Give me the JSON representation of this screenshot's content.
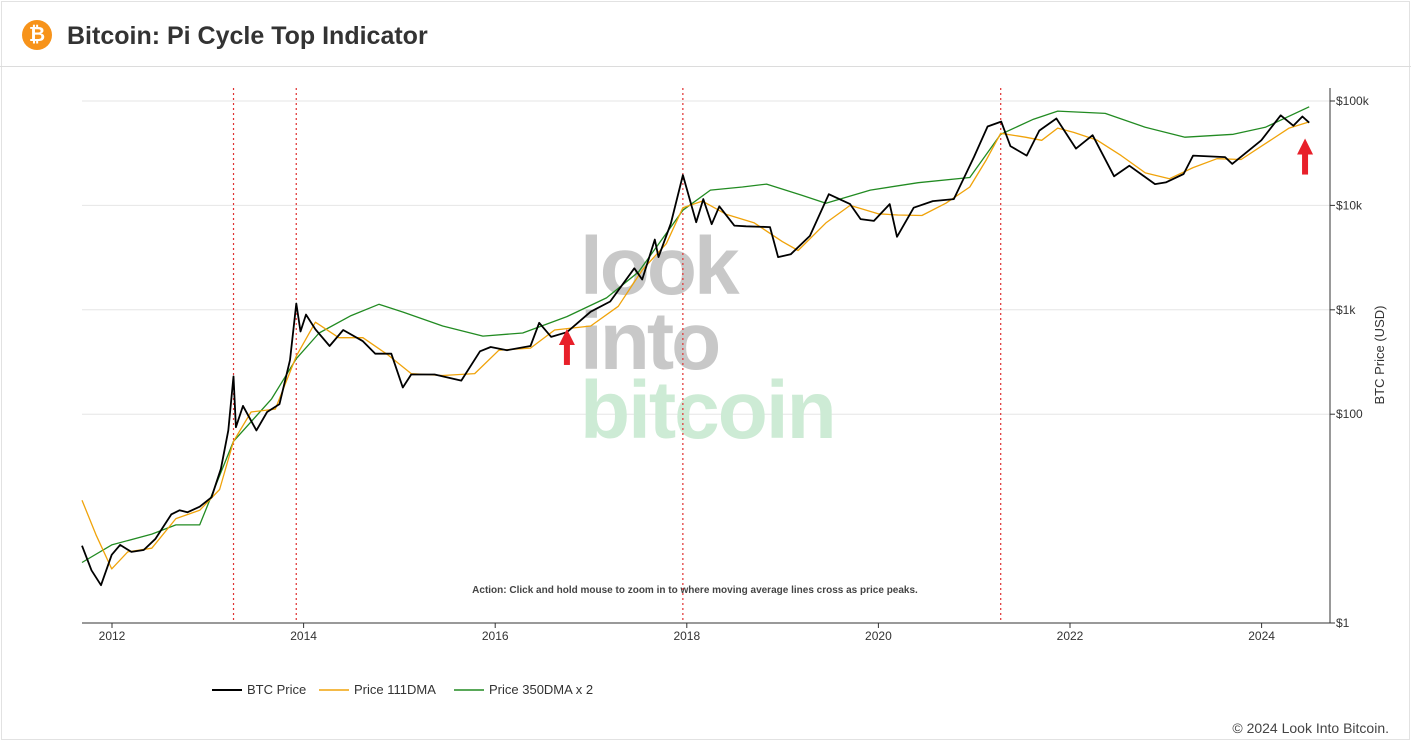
{
  "header": {
    "title": "Bitcoin: Pi Cycle Top Indicator",
    "logo_icon": "bitcoin-logo-icon",
    "logo_glyph": "₿"
  },
  "watermark": {
    "line1": "look",
    "line2": "into",
    "line3": "bitcoin"
  },
  "footer": {
    "copyright": "© 2024 Look Into Bitcoin."
  },
  "colors": {
    "btc_price": "#000000",
    "dma111": "#f0a30a",
    "dma350x2": "#228b22",
    "cross_line": "#e03030",
    "arrow": "#e8202a",
    "bitcoin_orange": "#f7931a"
  },
  "chart_data": {
    "type": "line",
    "title": "Bitcoin: Pi Cycle Top Indicator",
    "ylabel": "BTC Price (USD)",
    "xlabel": "",
    "y_scale": "log",
    "ylim": [
      1,
      100000
    ],
    "xlim": [
      "2011-09-01",
      "2024-12-31"
    ],
    "y_ticks": [
      {
        "value": 1,
        "label": "$1"
      },
      {
        "value": 100,
        "label": "$100"
      },
      {
        "value": 1000,
        "label": "$1k"
      },
      {
        "value": 10000,
        "label": "$10k"
      },
      {
        "value": 100000,
        "label": "$100k"
      }
    ],
    "x_ticks": [
      {
        "value": 2012,
        "label": "2012"
      },
      {
        "value": 2014,
        "label": "2014"
      },
      {
        "value": 2016,
        "label": "2016"
      },
      {
        "value": 2018,
        "label": "2018"
      },
      {
        "value": 2020,
        "label": "2020"
      },
      {
        "value": 2022,
        "label": "2022"
      },
      {
        "value": 2024,
        "label": "2024"
      }
    ],
    "grid": true,
    "legend_position": "bottom-left",
    "annotation": "Action: Click and hold mouse to zoom in to where moving average lines cross as price peaks.",
    "cross_events": [
      "2013-04-09",
      "2013-12-04",
      "2017-12-17",
      "2021-04-12"
    ],
    "arrow_events": [
      {
        "date": "2016-10-01",
        "price": 600
      },
      {
        "date": "2024-06-15",
        "price": 40000
      }
    ],
    "series": [
      {
        "name": "BTC Price",
        "color": "#000000",
        "points": [
          [
            "2011-09-01",
            5.5
          ],
          [
            "2011-10-15",
            3.2
          ],
          [
            "2011-11-20",
            2.3
          ],
          [
            "2011-12-31",
            4.5
          ],
          [
            "2012-02-01",
            5.6
          ],
          [
            "2012-03-15",
            4.8
          ],
          [
            "2012-05-01",
            5.0
          ],
          [
            "2012-06-15",
            6.4
          ],
          [
            "2012-08-15",
            11
          ],
          [
            "2012-09-15",
            12
          ],
          [
            "2012-10-15",
            11.5
          ],
          [
            "2012-12-01",
            13
          ],
          [
            "2013-01-15",
            16
          ],
          [
            "2013-02-20",
            30
          ],
          [
            "2013-03-20",
            70
          ],
          [
            "2013-04-09",
            230
          ],
          [
            "2013-04-18",
            75
          ],
          [
            "2013-05-15",
            120
          ],
          [
            "2013-07-05",
            70
          ],
          [
            "2013-08-15",
            105
          ],
          [
            "2013-10-01",
            125
          ],
          [
            "2013-11-10",
            330
          ],
          [
            "2013-12-04",
            1150
          ],
          [
            "2013-12-20",
            620
          ],
          [
            "2014-01-10",
            900
          ],
          [
            "2014-02-15",
            650
          ],
          [
            "2014-04-10",
            450
          ],
          [
            "2014-06-01",
            640
          ],
          [
            "2014-08-15",
            500
          ],
          [
            "2014-10-01",
            380
          ],
          [
            "2014-12-01",
            380
          ],
          [
            "2015-01-14",
            180
          ],
          [
            "2015-02-15",
            240
          ],
          [
            "2015-05-15",
            240
          ],
          [
            "2015-08-25",
            210
          ],
          [
            "2015-11-04",
            400
          ],
          [
            "2015-12-15",
            440
          ],
          [
            "2016-02-15",
            410
          ],
          [
            "2016-05-15",
            450
          ],
          [
            "2016-06-17",
            750
          ],
          [
            "2016-08-02",
            550
          ],
          [
            "2016-10-01",
            610
          ],
          [
            "2016-12-31",
            960
          ],
          [
            "2017-03-15",
            1200
          ],
          [
            "2017-06-15",
            2500
          ],
          [
            "2017-07-15",
            1950
          ],
          [
            "2017-09-01",
            4700
          ],
          [
            "2017-09-15",
            3200
          ],
          [
            "2017-11-01",
            6700
          ],
          [
            "2017-12-17",
            19500
          ],
          [
            "2018-02-06",
            6900
          ],
          [
            "2018-03-05",
            11500
          ],
          [
            "2018-04-06",
            6600
          ],
          [
            "2018-05-05",
            9800
          ],
          [
            "2018-07-01",
            6400
          ],
          [
            "2018-08-15",
            6300
          ],
          [
            "2018-11-14",
            6200
          ],
          [
            "2018-12-15",
            3200
          ],
          [
            "2019-02-01",
            3400
          ],
          [
            "2019-04-15",
            5100
          ],
          [
            "2019-06-26",
            12800
          ],
          [
            "2019-09-15",
            10300
          ],
          [
            "2019-10-25",
            7400
          ],
          [
            "2019-12-15",
            7100
          ],
          [
            "2020-02-13",
            10300
          ],
          [
            "2020-03-12",
            5000
          ],
          [
            "2020-05-15",
            9500
          ],
          [
            "2020-07-27",
            11000
          ],
          [
            "2020-10-15",
            11500
          ],
          [
            "2020-12-31",
            29000
          ],
          [
            "2021-02-21",
            57000
          ],
          [
            "2021-04-14",
            63500
          ],
          [
            "2021-05-19",
            37000
          ],
          [
            "2021-07-20",
            30000
          ],
          [
            "2021-09-06",
            52000
          ],
          [
            "2021-11-10",
            68000
          ],
          [
            "2022-01-24",
            35000
          ],
          [
            "2022-03-28",
            47000
          ],
          [
            "2022-06-18",
            19000
          ],
          [
            "2022-08-15",
            24000
          ],
          [
            "2022-11-21",
            16000
          ],
          [
            "2023-01-01",
            16600
          ],
          [
            "2023-03-10",
            20000
          ],
          [
            "2023-04-15",
            30000
          ],
          [
            "2023-08-15",
            29000
          ],
          [
            "2023-09-11",
            25000
          ],
          [
            "2023-12-31",
            42000
          ],
          [
            "2024-03-14",
            73000
          ],
          [
            "2024-05-01",
            58000
          ],
          [
            "2024-06-05",
            71000
          ],
          [
            "2024-07-01",
            62000
          ]
        ]
      },
      {
        "name": "Price 111DMA",
        "color": "#f0a30a",
        "points": [
          [
            "2011-09-01",
            15
          ],
          [
            "2011-11-01",
            7
          ],
          [
            "2011-12-31",
            3.3
          ],
          [
            "2012-03-01",
            4.8
          ],
          [
            "2012-06-01",
            5.2
          ],
          [
            "2012-09-01",
            10
          ],
          [
            "2012-12-01",
            12
          ],
          [
            "2013-02-15",
            19
          ],
          [
            "2013-04-09",
            55
          ],
          [
            "2013-06-15",
            105
          ],
          [
            "2013-09-15",
            112
          ],
          [
            "2013-12-04",
            360
          ],
          [
            "2014-02-15",
            760
          ],
          [
            "2014-05-15",
            540
          ],
          [
            "2014-08-15",
            540
          ],
          [
            "2014-11-15",
            375
          ],
          [
            "2015-02-15",
            245
          ],
          [
            "2015-06-15",
            235
          ],
          [
            "2015-10-15",
            245
          ],
          [
            "2016-01-15",
            410
          ],
          [
            "2016-05-15",
            430
          ],
          [
            "2016-08-15",
            640
          ],
          [
            "2016-12-31",
            700
          ],
          [
            "2017-04-15",
            1080
          ],
          [
            "2017-07-15",
            2400
          ],
          [
            "2017-10-15",
            4300
          ],
          [
            "2017-12-17",
            9500
          ],
          [
            "2018-03-01",
            11000
          ],
          [
            "2018-06-01",
            8200
          ],
          [
            "2018-09-15",
            6800
          ],
          [
            "2018-12-31",
            4500
          ],
          [
            "2019-03-01",
            3700
          ],
          [
            "2019-06-15",
            6800
          ],
          [
            "2019-09-15",
            10000
          ],
          [
            "2019-12-31",
            8300
          ],
          [
            "2020-03-15",
            8100
          ],
          [
            "2020-06-15",
            8000
          ],
          [
            "2020-09-15",
            10500
          ],
          [
            "2020-12-15",
            15000
          ],
          [
            "2021-02-15",
            27000
          ],
          [
            "2021-04-12",
            49000
          ],
          [
            "2021-07-15",
            45000
          ],
          [
            "2021-09-15",
            42000
          ],
          [
            "2021-11-15",
            55000
          ],
          [
            "2022-01-15",
            50000
          ],
          [
            "2022-04-15",
            42000
          ],
          [
            "2022-07-15",
            30000
          ],
          [
            "2022-10-15",
            20500
          ],
          [
            "2023-01-15",
            18000
          ],
          [
            "2023-04-15",
            23000
          ],
          [
            "2023-07-15",
            28000
          ],
          [
            "2023-10-15",
            27500
          ],
          [
            "2024-01-01",
            37000
          ],
          [
            "2024-04-15",
            55000
          ],
          [
            "2024-07-01",
            63000
          ]
        ]
      },
      {
        "name": "Price 350DMA x 2",
        "color": "#228b22",
        "points": [
          [
            "2011-09-01",
            3.8
          ],
          [
            "2011-12-31",
            5.6
          ],
          [
            "2012-06-01",
            7.1
          ],
          [
            "2012-09-01",
            8.7
          ],
          [
            "2012-12-01",
            8.7
          ],
          [
            "2013-04-09",
            55
          ],
          [
            "2013-09-01",
            140
          ],
          [
            "2013-12-04",
            340
          ],
          [
            "2014-03-01",
            600
          ],
          [
            "2014-07-01",
            880
          ],
          [
            "2014-10-15",
            1130
          ],
          [
            "2015-01-15",
            950
          ],
          [
            "2015-06-15",
            700
          ],
          [
            "2015-11-15",
            560
          ],
          [
            "2016-04-15",
            600
          ],
          [
            "2016-10-01",
            860
          ],
          [
            "2017-03-01",
            1300
          ],
          [
            "2017-07-01",
            2300
          ],
          [
            "2017-12-17",
            9000
          ],
          [
            "2018-04-01",
            14000
          ],
          [
            "2018-08-01",
            15000
          ],
          [
            "2018-11-01",
            16000
          ],
          [
            "2019-03-15",
            12500
          ],
          [
            "2019-06-15",
            10500
          ],
          [
            "2019-12-01",
            14000
          ],
          [
            "2020-06-01",
            16500
          ],
          [
            "2020-12-15",
            18500
          ],
          [
            "2021-04-12",
            48000
          ],
          [
            "2021-08-15",
            67000
          ],
          [
            "2021-11-15",
            80000
          ],
          [
            "2022-05-15",
            76000
          ],
          [
            "2022-10-15",
            56000
          ],
          [
            "2023-03-15",
            45000
          ],
          [
            "2023-09-15",
            48000
          ],
          [
            "2024-01-15",
            56000
          ],
          [
            "2024-07-01",
            88000
          ]
        ]
      }
    ]
  }
}
